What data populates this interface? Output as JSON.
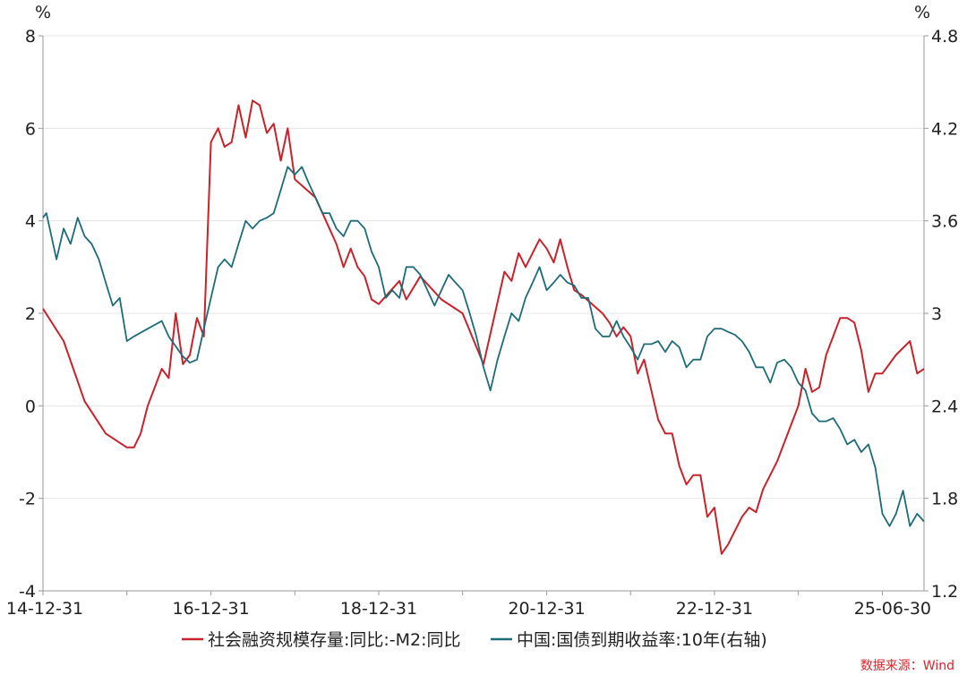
{
  "chart_data": {
    "type": "line",
    "left_unit": "%",
    "right_unit": "%",
    "x_tick_labels": [
      "14-12-31",
      "16-12-31",
      "18-12-31",
      "20-12-31",
      "22-12-31",
      "25-06-30"
    ],
    "x_range": [
      "2014-12-31",
      "2025-06-30"
    ],
    "y_left": {
      "range": [
        -4,
        8
      ],
      "ticks": [
        "8",
        "6",
        "4",
        "2",
        "0",
        "-2",
        "-4"
      ]
    },
    "y_right": {
      "range": [
        1.2,
        4.8
      ],
      "ticks": [
        "4.8",
        "4.2",
        "3.6",
        "3",
        "2.4",
        "1.8",
        "1.2"
      ]
    },
    "grid": "horizontal",
    "legend_position": "bottom",
    "source": "数据来源：Wind",
    "series": [
      {
        "name": "社会融资规模存量:同比:-M2:同比",
        "axis": "left",
        "color": "#c8232c",
        "points": [
          [
            "2014-12-31",
            2.1
          ],
          [
            "2015-03-31",
            1.4
          ],
          [
            "2015-06-30",
            0.1
          ],
          [
            "2015-09-30",
            -0.6
          ],
          [
            "2015-12-31",
            -0.9
          ],
          [
            "2016-01-31",
            -0.9
          ],
          [
            "2016-02-29",
            -0.6
          ],
          [
            "2016-03-31",
            0.0
          ],
          [
            "2016-05-31",
            0.8
          ],
          [
            "2016-06-30",
            0.6
          ],
          [
            "2016-07-31",
            2.0
          ],
          [
            "2016-08-31",
            0.9
          ],
          [
            "2016-09-30",
            1.1
          ],
          [
            "2016-10-31",
            1.9
          ],
          [
            "2016-11-30",
            1.5
          ],
          [
            "2016-12-31",
            5.7
          ],
          [
            "2017-01-31",
            6.0
          ],
          [
            "2017-02-28",
            5.6
          ],
          [
            "2017-03-31",
            5.7
          ],
          [
            "2017-04-30",
            6.5
          ],
          [
            "2017-05-31",
            5.8
          ],
          [
            "2017-06-30",
            6.6
          ],
          [
            "2017-07-31",
            6.5
          ],
          [
            "2017-08-31",
            5.9
          ],
          [
            "2017-09-30",
            6.1
          ],
          [
            "2017-10-31",
            5.3
          ],
          [
            "2017-11-30",
            6.0
          ],
          [
            "2017-12-31",
            4.9
          ],
          [
            "2018-03-31",
            4.5
          ],
          [
            "2018-06-30",
            3.5
          ],
          [
            "2018-07-31",
            3.0
          ],
          [
            "2018-08-31",
            3.4
          ],
          [
            "2018-09-30",
            3.0
          ],
          [
            "2018-10-31",
            2.8
          ],
          [
            "2018-11-30",
            2.3
          ],
          [
            "2018-12-31",
            2.2
          ],
          [
            "2019-03-31",
            2.7
          ],
          [
            "2019-04-30",
            2.3
          ],
          [
            "2019-06-30",
            2.8
          ],
          [
            "2019-09-30",
            2.3
          ],
          [
            "2019-12-31",
            2.0
          ],
          [
            "2020-03-31",
            0.9
          ],
          [
            "2020-06-30",
            2.9
          ],
          [
            "2020-07-31",
            2.7
          ],
          [
            "2020-08-31",
            3.3
          ],
          [
            "2020-09-30",
            3.0
          ],
          [
            "2020-11-30",
            3.6
          ],
          [
            "2020-12-31",
            3.4
          ],
          [
            "2021-01-31",
            3.1
          ],
          [
            "2021-02-28",
            3.6
          ],
          [
            "2021-03-31",
            3.0
          ],
          [
            "2021-04-30",
            2.5
          ],
          [
            "2021-05-31",
            2.4
          ],
          [
            "2021-08-31",
            2.0
          ],
          [
            "2021-09-30",
            1.8
          ],
          [
            "2021-10-31",
            1.5
          ],
          [
            "2021-11-30",
            1.7
          ],
          [
            "2021-12-31",
            1.5
          ],
          [
            "2022-01-31",
            0.7
          ],
          [
            "2022-02-28",
            1.0
          ],
          [
            "2022-04-30",
            -0.3
          ],
          [
            "2022-05-31",
            -0.6
          ],
          [
            "2022-06-30",
            -0.6
          ],
          [
            "2022-07-31",
            -1.3
          ],
          [
            "2022-08-31",
            -1.7
          ],
          [
            "2022-09-30",
            -1.5
          ],
          [
            "2022-10-31",
            -1.5
          ],
          [
            "2022-11-30",
            -2.4
          ],
          [
            "2022-12-31",
            -2.2
          ],
          [
            "2023-01-31",
            -3.2
          ],
          [
            "2023-02-28",
            -3.0
          ],
          [
            "2023-04-30",
            -2.4
          ],
          [
            "2023-05-31",
            -2.2
          ],
          [
            "2023-06-30",
            -2.3
          ],
          [
            "2023-07-31",
            -1.8
          ],
          [
            "2023-09-30",
            -1.2
          ],
          [
            "2023-12-31",
            0.0
          ],
          [
            "2024-01-31",
            0.8
          ],
          [
            "2024-02-29",
            0.3
          ],
          [
            "2024-03-31",
            0.4
          ],
          [
            "2024-04-30",
            1.1
          ],
          [
            "2024-06-30",
            1.9
          ],
          [
            "2024-07-31",
            1.9
          ],
          [
            "2024-08-31",
            1.8
          ],
          [
            "2024-09-30",
            1.2
          ],
          [
            "2024-10-31",
            0.3
          ],
          [
            "2024-11-30",
            0.7
          ],
          [
            "2024-12-31",
            0.7
          ],
          [
            "2025-02-28",
            1.1
          ],
          [
            "2025-04-30",
            1.4
          ],
          [
            "2025-05-31",
            0.7
          ],
          [
            "2025-06-30",
            0.8
          ]
        ]
      },
      {
        "name": "中国:国债到期收益率:10年(右轴)",
        "axis": "right",
        "color": "#1f6b78",
        "points": [
          [
            "2014-12-31",
            3.62
          ],
          [
            "2015-01-15",
            3.65
          ],
          [
            "2015-02-28",
            3.35
          ],
          [
            "2015-03-31",
            3.55
          ],
          [
            "2015-04-30",
            3.45
          ],
          [
            "2015-05-31",
            3.62
          ],
          [
            "2015-06-30",
            3.5
          ],
          [
            "2015-07-31",
            3.45
          ],
          [
            "2015-08-31",
            3.35
          ],
          [
            "2015-09-30",
            3.2
          ],
          [
            "2015-10-31",
            3.05
          ],
          [
            "2015-11-30",
            3.1
          ],
          [
            "2015-12-31",
            2.82
          ],
          [
            "2016-01-31",
            2.85
          ],
          [
            "2016-03-31",
            2.9
          ],
          [
            "2016-05-31",
            2.95
          ],
          [
            "2016-06-30",
            2.85
          ],
          [
            "2016-08-31",
            2.72
          ],
          [
            "2016-09-30",
            2.68
          ],
          [
            "2016-10-31",
            2.7
          ],
          [
            "2016-11-30",
            2.9
          ],
          [
            "2016-12-31",
            3.1
          ],
          [
            "2017-01-31",
            3.3
          ],
          [
            "2017-02-28",
            3.35
          ],
          [
            "2017-03-31",
            3.3
          ],
          [
            "2017-04-30",
            3.45
          ],
          [
            "2017-05-31",
            3.6
          ],
          [
            "2017-06-30",
            3.55
          ],
          [
            "2017-07-31",
            3.6
          ],
          [
            "2017-08-31",
            3.62
          ],
          [
            "2017-09-30",
            3.65
          ],
          [
            "2017-10-31",
            3.8
          ],
          [
            "2017-11-30",
            3.95
          ],
          [
            "2017-12-31",
            3.9
          ],
          [
            "2018-01-31",
            3.95
          ],
          [
            "2018-02-28",
            3.85
          ],
          [
            "2018-03-31",
            3.75
          ],
          [
            "2018-04-30",
            3.65
          ],
          [
            "2018-05-31",
            3.65
          ],
          [
            "2018-06-30",
            3.55
          ],
          [
            "2018-07-31",
            3.5
          ],
          [
            "2018-08-31",
            3.6
          ],
          [
            "2018-09-30",
            3.6
          ],
          [
            "2018-10-31",
            3.55
          ],
          [
            "2018-11-30",
            3.4
          ],
          [
            "2018-12-31",
            3.3
          ],
          [
            "2019-01-31",
            3.1
          ],
          [
            "2019-02-28",
            3.15
          ],
          [
            "2019-03-31",
            3.1
          ],
          [
            "2019-04-30",
            3.3
          ],
          [
            "2019-05-31",
            3.3
          ],
          [
            "2019-06-30",
            3.25
          ],
          [
            "2019-07-31",
            3.15
          ],
          [
            "2019-08-31",
            3.05
          ],
          [
            "2019-09-30",
            3.15
          ],
          [
            "2019-10-31",
            3.25
          ],
          [
            "2019-11-30",
            3.2
          ],
          [
            "2019-12-31",
            3.15
          ],
          [
            "2020-01-31",
            3.0
          ],
          [
            "2020-02-29",
            2.85
          ],
          [
            "2020-03-31",
            2.65
          ],
          [
            "2020-04-30",
            2.5
          ],
          [
            "2020-05-31",
            2.7
          ],
          [
            "2020-06-30",
            2.85
          ],
          [
            "2020-07-31",
            3.0
          ],
          [
            "2020-08-31",
            2.95
          ],
          [
            "2020-09-30",
            3.1
          ],
          [
            "2020-10-31",
            3.2
          ],
          [
            "2020-11-30",
            3.3
          ],
          [
            "2020-12-31",
            3.15
          ],
          [
            "2021-01-31",
            3.2
          ],
          [
            "2021-02-28",
            3.25
          ],
          [
            "2021-03-31",
            3.2
          ],
          [
            "2021-04-30",
            3.18
          ],
          [
            "2021-05-31",
            3.1
          ],
          [
            "2021-06-30",
            3.1
          ],
          [
            "2021-07-31",
            2.9
          ],
          [
            "2021-08-31",
            2.85
          ],
          [
            "2021-09-30",
            2.85
          ],
          [
            "2021-10-31",
            2.95
          ],
          [
            "2021-11-30",
            2.85
          ],
          [
            "2021-12-31",
            2.78
          ],
          [
            "2022-01-31",
            2.7
          ],
          [
            "2022-02-28",
            2.8
          ],
          [
            "2022-03-31",
            2.8
          ],
          [
            "2022-04-30",
            2.82
          ],
          [
            "2022-05-31",
            2.75
          ],
          [
            "2022-06-30",
            2.82
          ],
          [
            "2022-07-31",
            2.78
          ],
          [
            "2022-08-31",
            2.65
          ],
          [
            "2022-09-30",
            2.7
          ],
          [
            "2022-10-31",
            2.7
          ],
          [
            "2022-11-30",
            2.85
          ],
          [
            "2022-12-31",
            2.9
          ],
          [
            "2023-01-31",
            2.9
          ],
          [
            "2023-02-28",
            2.88
          ],
          [
            "2023-03-31",
            2.86
          ],
          [
            "2023-04-30",
            2.82
          ],
          [
            "2023-05-31",
            2.75
          ],
          [
            "2023-06-30",
            2.65
          ],
          [
            "2023-07-31",
            2.65
          ],
          [
            "2023-08-31",
            2.55
          ],
          [
            "2023-09-30",
            2.68
          ],
          [
            "2023-10-31",
            2.7
          ],
          [
            "2023-11-30",
            2.65
          ],
          [
            "2023-12-31",
            2.55
          ],
          [
            "2024-01-31",
            2.5
          ],
          [
            "2024-02-29",
            2.35
          ],
          [
            "2024-03-31",
            2.3
          ],
          [
            "2024-04-30",
            2.3
          ],
          [
            "2024-05-31",
            2.32
          ],
          [
            "2024-06-30",
            2.25
          ],
          [
            "2024-07-31",
            2.15
          ],
          [
            "2024-08-31",
            2.18
          ],
          [
            "2024-09-30",
            2.1
          ],
          [
            "2024-10-31",
            2.15
          ],
          [
            "2024-11-30",
            2.0
          ],
          [
            "2024-12-31",
            1.7
          ],
          [
            "2025-01-31",
            1.62
          ],
          [
            "2025-02-28",
            1.7
          ],
          [
            "2025-03-31",
            1.85
          ],
          [
            "2025-04-30",
            1.62
          ],
          [
            "2025-05-31",
            1.7
          ],
          [
            "2025-06-30",
            1.65
          ]
        ]
      }
    ]
  }
}
